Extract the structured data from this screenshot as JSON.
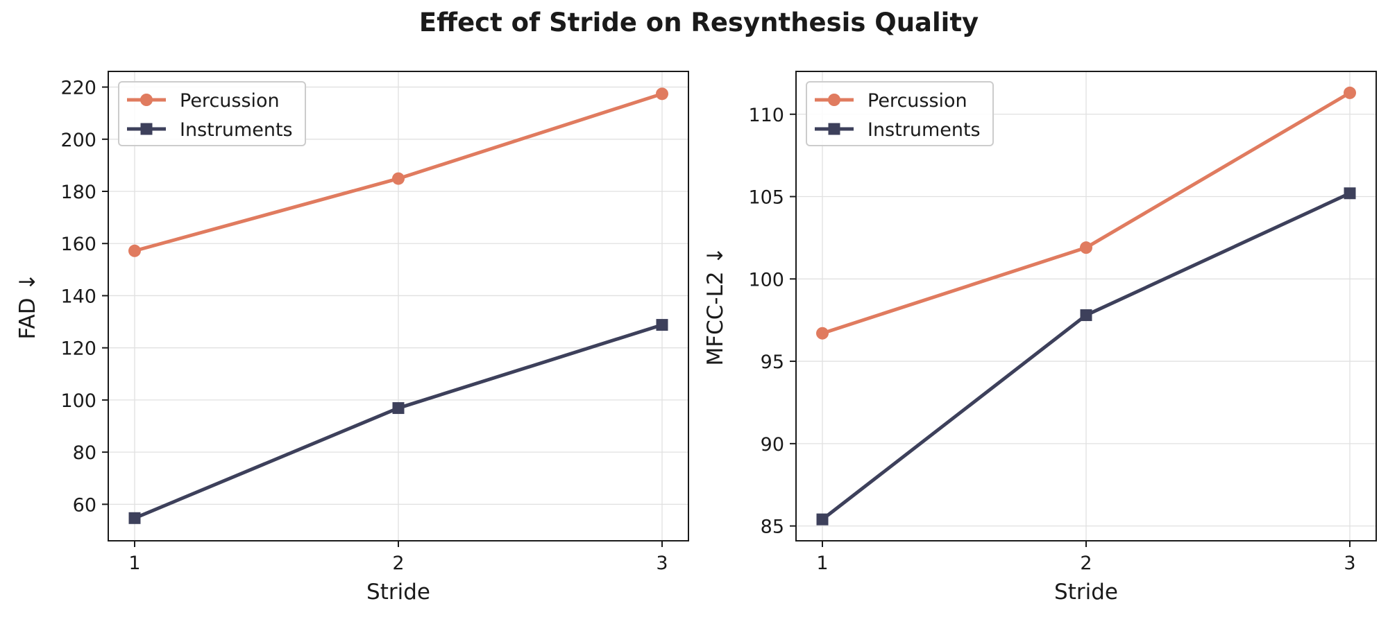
{
  "figure": {
    "title": "Effect of Stride on Resynthesis Quality"
  },
  "chart_data": [
    {
      "type": "line",
      "title": "",
      "xlabel": "Stride",
      "ylabel": "FAD ↓",
      "x": [
        1,
        2,
        3
      ],
      "xticks": [
        "1",
        "2",
        "3"
      ],
      "xlim": [
        0.9,
        3.1
      ],
      "ylim": [
        46,
        226
      ],
      "yticks": [
        60,
        80,
        100,
        120,
        140,
        160,
        180,
        200,
        220
      ],
      "grid": true,
      "legend_position": "top-left",
      "series": [
        {
          "name": "Percussion",
          "values": [
            157.2,
            184.9,
            217.4
          ],
          "color": "#e07b5f",
          "marker": "circle"
        },
        {
          "name": "Instruments",
          "values": [
            54.7,
            96.9,
            128.8
          ],
          "color": "#3d405b",
          "marker": "square"
        }
      ]
    },
    {
      "type": "line",
      "title": "",
      "xlabel": "Stride",
      "ylabel": "MFCC-L2 ↓",
      "x": [
        1,
        2,
        3
      ],
      "xticks": [
        "1",
        "2",
        "3"
      ],
      "xlim": [
        0.9,
        3.1
      ],
      "ylim": [
        84.1,
        112.6
      ],
      "yticks": [
        85,
        90,
        95,
        100,
        105,
        110
      ],
      "grid": true,
      "legend_position": "top-left",
      "series": [
        {
          "name": "Percussion",
          "values": [
            96.7,
            101.9,
            111.3
          ],
          "color": "#e07b5f",
          "marker": "circle"
        },
        {
          "name": "Instruments",
          "values": [
            85.4,
            97.8,
            105.2
          ],
          "color": "#3d405b",
          "marker": "square"
        }
      ]
    }
  ]
}
